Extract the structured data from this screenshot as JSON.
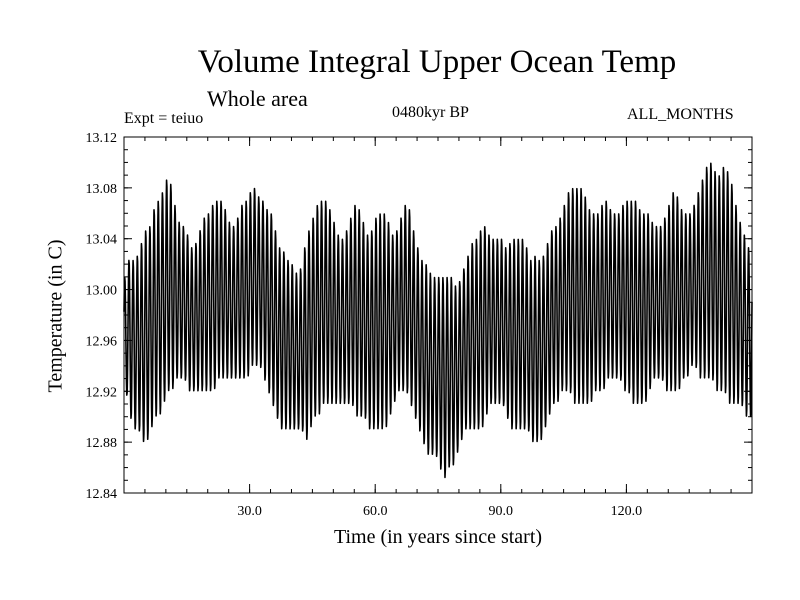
{
  "chart_data": {
    "type": "line",
    "title": "Volume Integral Upper Ocean Temp",
    "subtitle": "Whole area",
    "experiment": "Expt = teiuo",
    "period": "0480kyr BP",
    "months": "ALL_MONTHS",
    "xlabel": "Time (in years since start)",
    "ylabel": "Temperature (in C)",
    "xlim": [
      0,
      150
    ],
    "ylim": [
      12.84,
      13.12
    ],
    "xticks": [
      30,
      60,
      90,
      120
    ],
    "xtick_labels": [
      "30.0",
      "60.0",
      "90.0",
      "120.0"
    ],
    "yticks": [
      12.84,
      12.88,
      12.92,
      12.96,
      13.0,
      13.04,
      13.08,
      13.12
    ],
    "ytick_labels": [
      "12.84",
      "12.88",
      "12.92",
      "12.96",
      "13.00",
      "13.04",
      "13.08",
      "13.12"
    ],
    "grid": false,
    "series": [
      {
        "name": "teiuo",
        "description": "Monthly values oscillating seasonally around a slowly varying annual mean",
        "annual_years": [
          0.5,
          1.5,
          2.5,
          3.5,
          4.5,
          5.5,
          6.5,
          7.5,
          8.5,
          9.5,
          10.5,
          11.5,
          12.5,
          13.5,
          14.5,
          15.5,
          16.5,
          17.5,
          18.5,
          19.5,
          20.5,
          21.5,
          22.5,
          23.5,
          24.5,
          25.5,
          26.5,
          27.5,
          28.5,
          29.5,
          30.5,
          31.5,
          32.5,
          33.5,
          34.5,
          35.5,
          36.5,
          37.5,
          38.5,
          39.5,
          40.5,
          41.5,
          42.5,
          43.5,
          44.5,
          45.5,
          46.5,
          47.5,
          48.5,
          49.5,
          50.5,
          51.5,
          52.5,
          53.5,
          54.5,
          55.5,
          56.5,
          57.5,
          58.5,
          59.5,
          60.5,
          61.5,
          62.5,
          63.5,
          64.5,
          65.5,
          66.5,
          67.5,
          68.5,
          69.5,
          70.5,
          71.5,
          72.5,
          73.5,
          74.5,
          75.5,
          76.5,
          77.5,
          78.5,
          79.5,
          80.5,
          81.5,
          82.5,
          83.5,
          84.5,
          85.5,
          86.5,
          87.5,
          88.5,
          89.5,
          90.5,
          91.5,
          92.5,
          93.5,
          94.5,
          95.5,
          96.5,
          97.5,
          98.5,
          99.5,
          100.5,
          101.5,
          102.5,
          103.5,
          104.5,
          105.5,
          106.5,
          107.5,
          108.5,
          109.5,
          110.5,
          111.5,
          112.5,
          113.5,
          114.5,
          115.5,
          116.5,
          117.5,
          118.5,
          119.5,
          120.5,
          121.5,
          122.5,
          123.5,
          124.5,
          125.5,
          126.5,
          127.5,
          128.5,
          129.5,
          130.5,
          131.5,
          132.5,
          133.5,
          134.5,
          135.5,
          136.5,
          137.5,
          138.5,
          139.5,
          140.5,
          141.5,
          142.5,
          143.5,
          144.5,
          145.5,
          146.5,
          147.5,
          148.5,
          149.5
        ],
        "annual_max": [
          13.01,
          13.03,
          13.02,
          13.03,
          13.04,
          13.05,
          13.05,
          13.07,
          13.07,
          13.08,
          13.09,
          13.08,
          13.06,
          13.05,
          13.05,
          13.04,
          13.03,
          13.04,
          13.05,
          13.06,
          13.06,
          13.07,
          13.07,
          13.07,
          13.06,
          13.05,
          13.05,
          13.06,
          13.07,
          13.07,
          13.08,
          13.08,
          13.07,
          13.07,
          13.06,
          13.06,
          13.04,
          13.03,
          13.03,
          13.02,
          13.02,
          13.01,
          13.02,
          13.04,
          13.05,
          13.06,
          13.07,
          13.07,
          13.07,
          13.06,
          13.05,
          13.04,
          13.04,
          13.05,
          13.06,
          13.07,
          13.06,
          13.05,
          13.04,
          13.05,
          13.06,
          13.06,
          13.06,
          13.05,
          13.04,
          13.05,
          13.06,
          13.07,
          13.06,
          13.04,
          13.03,
          13.02,
          13.02,
          13.01,
          13.01,
          13.01,
          13.01,
          13.01,
          13.01,
          13.0,
          13.01,
          13.02,
          13.03,
          13.04,
          13.04,
          13.05,
          13.05,
          13.04,
          13.04,
          13.04,
          13.04,
          13.03,
          13.04,
          13.04,
          13.04,
          13.04,
          13.03,
          13.02,
          13.03,
          13.02,
          13.03,
          13.04,
          13.05,
          13.05,
          13.06,
          13.07,
          13.08,
          13.08,
          13.08,
          13.08,
          13.07,
          13.06,
          13.06,
          13.06,
          13.07,
          13.07,
          13.06,
          13.06,
          13.06,
          13.07,
          13.07,
          13.07,
          13.07,
          13.06,
          13.06,
          13.06,
          13.05,
          13.05,
          13.05,
          13.06,
          13.07,
          13.08,
          13.07,
          13.06,
          13.06,
          13.06,
          13.07,
          13.08,
          13.09,
          13.1,
          13.1,
          13.09,
          13.09,
          13.1,
          13.09,
          13.08,
          13.06,
          13.05,
          13.04,
          13.03
        ],
        "annual_min": [
          12.92,
          12.9,
          12.89,
          12.89,
          12.88,
          12.88,
          12.89,
          12.9,
          12.9,
          12.91,
          12.92,
          12.92,
          12.93,
          12.93,
          12.93,
          12.92,
          12.92,
          12.92,
          12.92,
          12.92,
          12.92,
          12.92,
          12.93,
          12.93,
          12.93,
          12.93,
          12.93,
          12.93,
          12.93,
          12.93,
          12.94,
          12.94,
          12.94,
          12.93,
          12.92,
          12.91,
          12.9,
          12.89,
          12.89,
          12.89,
          12.89,
          12.89,
          12.89,
          12.88,
          12.89,
          12.9,
          12.9,
          12.91,
          12.91,
          12.91,
          12.91,
          12.91,
          12.91,
          12.91,
          12.91,
          12.9,
          12.9,
          12.9,
          12.89,
          12.89,
          12.89,
          12.89,
          12.89,
          12.9,
          12.91,
          12.92,
          12.92,
          12.92,
          12.91,
          12.9,
          12.89,
          12.88,
          12.87,
          12.87,
          12.87,
          12.86,
          12.85,
          12.86,
          12.86,
          12.87,
          12.88,
          12.89,
          12.89,
          12.89,
          12.89,
          12.89,
          12.9,
          12.91,
          12.91,
          12.91,
          12.91,
          12.9,
          12.89,
          12.89,
          12.89,
          12.89,
          12.89,
          12.88,
          12.88,
          12.88,
          12.89,
          12.9,
          12.91,
          12.91,
          12.92,
          12.92,
          12.92,
          12.91,
          12.91,
          12.91,
          12.91,
          12.91,
          12.92,
          12.92,
          12.92,
          12.93,
          12.93,
          12.93,
          12.93,
          12.92,
          12.92,
          12.91,
          12.91,
          12.91,
          12.91,
          12.92,
          12.93,
          12.93,
          12.93,
          12.92,
          12.92,
          12.92,
          12.92,
          12.93,
          12.93,
          12.94,
          12.94,
          12.93,
          12.93,
          12.93,
          12.93,
          12.92,
          12.92,
          12.92,
          12.91,
          12.91,
          12.91,
          12.91,
          12.9,
          12.9
        ]
      }
    ]
  }
}
